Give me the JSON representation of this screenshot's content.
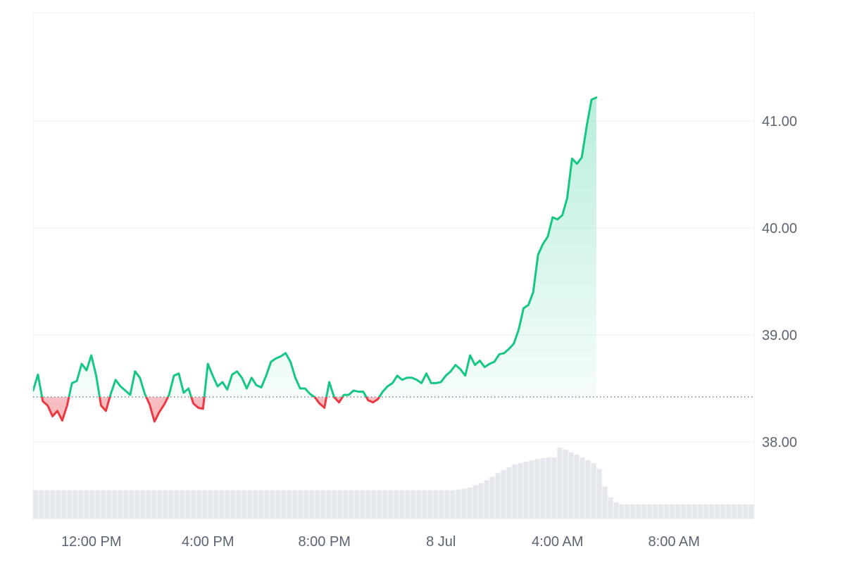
{
  "colors": {
    "up_line": "#16c784",
    "down_line": "#ea3943",
    "up_fill": "#16c784",
    "down_fill": "#ea3943",
    "volume_bar": "#e4e7ec",
    "grid": "#eef0f3",
    "baseline_dots": "#7a8291",
    "axis_text": "#5b6472"
  },
  "chart_data": {
    "type": "area",
    "baseline_value": 38.42,
    "y_axis": {
      "position": "right",
      "ylim": [
        37.3,
        42.0
      ],
      "ticks": [
        {
          "value": 38.0,
          "label": "38.00"
        },
        {
          "value": 39.0,
          "label": "39.00"
        },
        {
          "value": 40.0,
          "label": "40.00"
        },
        {
          "value": 41.0,
          "label": "41.00"
        }
      ]
    },
    "x_axis": {
      "range": [
        "2025-07-07T10:00",
        "2025-07-08T10:45"
      ],
      "ticks": [
        {
          "time": "2025-07-07T12:00",
          "label": "12:00 PM"
        },
        {
          "time": "2025-07-07T16:00",
          "label": "4:00 PM"
        },
        {
          "time": "2025-07-07T20:00",
          "label": "8:00 PM"
        },
        {
          "time": "2025-07-08T00:00",
          "label": "8 Jul"
        },
        {
          "time": "2025-07-08T04:00",
          "label": "4:00 AM"
        },
        {
          "time": "2025-07-08T08:00",
          "label": "8:00 AM"
        }
      ]
    },
    "series": [
      {
        "values": [
          [
            "2025-07-07T10:00",
            38.48
          ],
          [
            "2025-07-07T10:10",
            38.63
          ],
          [
            "2025-07-07T10:20",
            38.38
          ],
          [
            "2025-07-07T10:30",
            38.34
          ],
          [
            "2025-07-07T10:40",
            38.24
          ],
          [
            "2025-07-07T10:50",
            38.29
          ],
          [
            "2025-07-07T11:00",
            38.2
          ],
          [
            "2025-07-07T11:10",
            38.34
          ],
          [
            "2025-07-07T11:20",
            38.55
          ],
          [
            "2025-07-07T11:30",
            38.57
          ],
          [
            "2025-07-07T11:40",
            38.73
          ],
          [
            "2025-07-07T11:50",
            38.67
          ],
          [
            "2025-07-07T12:00",
            38.81
          ],
          [
            "2025-07-07T12:10",
            38.62
          ],
          [
            "2025-07-07T12:20",
            38.34
          ],
          [
            "2025-07-07T12:30",
            38.29
          ],
          [
            "2025-07-07T12:40",
            38.45
          ],
          [
            "2025-07-07T12:50",
            38.58
          ],
          [
            "2025-07-07T13:00",
            38.52
          ],
          [
            "2025-07-07T13:10",
            38.48
          ],
          [
            "2025-07-07T13:20",
            38.44
          ],
          [
            "2025-07-07T13:30",
            38.66
          ],
          [
            "2025-07-07T13:40",
            38.6
          ],
          [
            "2025-07-07T13:50",
            38.45
          ],
          [
            "2025-07-07T14:00",
            38.35
          ],
          [
            "2025-07-07T14:10",
            38.19
          ],
          [
            "2025-07-07T14:20",
            38.28
          ],
          [
            "2025-07-07T14:30",
            38.35
          ],
          [
            "2025-07-07T14:40",
            38.44
          ],
          [
            "2025-07-07T14:50",
            38.62
          ],
          [
            "2025-07-07T15:00",
            38.64
          ],
          [
            "2025-07-07T15:10",
            38.46
          ],
          [
            "2025-07-07T15:20",
            38.5
          ],
          [
            "2025-07-07T15:30",
            38.36
          ],
          [
            "2025-07-07T15:40",
            38.32
          ],
          [
            "2025-07-07T15:50",
            38.31
          ],
          [
            "2025-07-07T16:00",
            38.73
          ],
          [
            "2025-07-07T16:10",
            38.62
          ],
          [
            "2025-07-07T16:20",
            38.52
          ],
          [
            "2025-07-07T16:30",
            38.56
          ],
          [
            "2025-07-07T16:40",
            38.49
          ],
          [
            "2025-07-07T16:50",
            38.63
          ],
          [
            "2025-07-07T17:00",
            38.66
          ],
          [
            "2025-07-07T17:10",
            38.6
          ],
          [
            "2025-07-07T17:20",
            38.5
          ],
          [
            "2025-07-07T17:30",
            38.6
          ],
          [
            "2025-07-07T17:40",
            38.53
          ],
          [
            "2025-07-07T17:50",
            38.51
          ],
          [
            "2025-07-07T18:00",
            38.62
          ],
          [
            "2025-07-07T18:10",
            38.75
          ],
          [
            "2025-07-07T18:20",
            38.78
          ],
          [
            "2025-07-07T18:30",
            38.8
          ],
          [
            "2025-07-07T18:40",
            38.83
          ],
          [
            "2025-07-07T18:50",
            38.75
          ],
          [
            "2025-07-07T19:00",
            38.6
          ],
          [
            "2025-07-07T19:10",
            38.5
          ],
          [
            "2025-07-07T19:20",
            38.5
          ],
          [
            "2025-07-07T19:30",
            38.45
          ],
          [
            "2025-07-07T19:40",
            38.42
          ],
          [
            "2025-07-07T19:50",
            38.36
          ],
          [
            "2025-07-07T20:00",
            38.32
          ],
          [
            "2025-07-07T20:10",
            38.56
          ],
          [
            "2025-07-07T20:20",
            38.42
          ],
          [
            "2025-07-07T20:30",
            38.37
          ],
          [
            "2025-07-07T20:40",
            38.44
          ],
          [
            "2025-07-07T20:50",
            38.44
          ],
          [
            "2025-07-07T21:00",
            38.48
          ],
          [
            "2025-07-07T21:10",
            38.47
          ],
          [
            "2025-07-07T21:20",
            38.47
          ],
          [
            "2025-07-07T21:30",
            38.39
          ],
          [
            "2025-07-07T21:40",
            38.37
          ],
          [
            "2025-07-07T21:50",
            38.4
          ],
          [
            "2025-07-07T22:00",
            38.47
          ],
          [
            "2025-07-07T22:10",
            38.52
          ],
          [
            "2025-07-07T22:20",
            38.55
          ],
          [
            "2025-07-07T22:30",
            38.62
          ],
          [
            "2025-07-07T22:40",
            38.58
          ],
          [
            "2025-07-07T22:50",
            38.6
          ],
          [
            "2025-07-07T23:00",
            38.6
          ],
          [
            "2025-07-07T23:10",
            38.58
          ],
          [
            "2025-07-07T23:20",
            38.55
          ],
          [
            "2025-07-07T23:30",
            38.64
          ],
          [
            "2025-07-07T23:40",
            38.55
          ],
          [
            "2025-07-07T23:50",
            38.55
          ],
          [
            "2025-07-08T00:00",
            38.56
          ],
          [
            "2025-07-08T00:10",
            38.62
          ],
          [
            "2025-07-08T00:20",
            38.66
          ],
          [
            "2025-07-08T00:30",
            38.72
          ],
          [
            "2025-07-08T00:40",
            38.68
          ],
          [
            "2025-07-08T00:50",
            38.62
          ],
          [
            "2025-07-08T01:00",
            38.81
          ],
          [
            "2025-07-08T01:10",
            38.72
          ],
          [
            "2025-07-08T01:20",
            38.76
          ],
          [
            "2025-07-08T01:30",
            38.7
          ],
          [
            "2025-07-08T01:40",
            38.73
          ],
          [
            "2025-07-08T01:50",
            38.75
          ],
          [
            "2025-07-08T02:00",
            38.82
          ],
          [
            "2025-07-08T02:10",
            38.83
          ],
          [
            "2025-07-08T02:20",
            38.87
          ],
          [
            "2025-07-08T02:30",
            38.92
          ],
          [
            "2025-07-08T02:40",
            39.05
          ],
          [
            "2025-07-08T02:50",
            39.25
          ],
          [
            "2025-07-08T03:00",
            39.28
          ],
          [
            "2025-07-08T03:10",
            39.4
          ],
          [
            "2025-07-08T03:20",
            39.75
          ],
          [
            "2025-07-08T03:30",
            39.85
          ],
          [
            "2025-07-08T03:40",
            39.92
          ],
          [
            "2025-07-08T03:50",
            40.1
          ],
          [
            "2025-07-08T04:00",
            40.08
          ],
          [
            "2025-07-08T04:10",
            40.12
          ],
          [
            "2025-07-08T04:20",
            40.28
          ],
          [
            "2025-07-08T04:30",
            40.65
          ],
          [
            "2025-07-08T04:40",
            40.6
          ],
          [
            "2025-07-08T04:50",
            40.66
          ],
          [
            "2025-07-08T05:00",
            40.95
          ],
          [
            "2025-07-08T05:10",
            41.2
          ],
          [
            "2025-07-08T05:20",
            41.22
          ]
        ]
      }
    ],
    "volume": {
      "values": [
        0.4,
        0.4,
        0.4,
        0.4,
        0.4,
        0.4,
        0.4,
        0.4,
        0.4,
        0.4,
        0.4,
        0.4,
        0.4,
        0.4,
        0.4,
        0.4,
        0.4,
        0.4,
        0.4,
        0.4,
        0.4,
        0.4,
        0.4,
        0.4,
        0.4,
        0.4,
        0.4,
        0.4,
        0.4,
        0.4,
        0.4,
        0.4,
        0.4,
        0.4,
        0.4,
        0.4,
        0.4,
        0.4,
        0.4,
        0.4,
        0.4,
        0.4,
        0.4,
        0.4,
        0.4,
        0.4,
        0.4,
        0.4,
        0.4,
        0.4,
        0.4,
        0.4,
        0.4,
        0.4,
        0.4,
        0.4,
        0.4,
        0.4,
        0.4,
        0.4,
        0.4,
        0.4,
        0.4,
        0.4,
        0.4,
        0.4,
        0.4,
        0.4,
        0.4,
        0.4,
        0.4,
        0.4,
        0.4,
        0.4,
        0.4,
        0.41,
        0.42,
        0.44,
        0.47,
        0.5,
        0.54,
        0.59,
        0.64,
        0.68,
        0.72,
        0.76,
        0.78,
        0.8,
        0.82,
        0.84,
        0.85,
        0.86,
        0.86,
        1.0,
        0.97,
        0.93,
        0.9,
        0.86,
        0.82,
        0.78,
        0.7,
        0.45,
        0.3,
        0.23,
        0.2,
        0.2,
        0.2,
        0.2,
        0.2,
        0.2,
        0.2,
        0.2,
        0.2,
        0.2,
        0.2,
        0.2,
        0.2,
        0.2,
        0.2,
        0.2,
        0.2,
        0.2,
        0.2,
        0.2,
        0.2,
        0.2,
        0.2,
        0.2
      ]
    },
    "grid": true
  }
}
